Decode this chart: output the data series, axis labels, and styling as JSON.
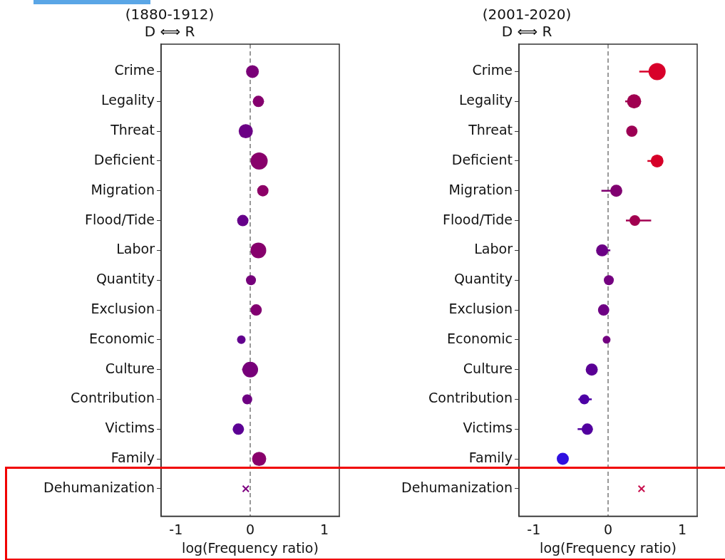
{
  "chart_data": [
    {
      "type": "bubble",
      "title": "(1880-1912)",
      "subtitle": "D ⟺ R",
      "xlabel": "log(Frequency ratio)",
      "orientation": "horizontal",
      "grid": false,
      "legend": false,
      "categories": [
        "Crime",
        "Legality",
        "Threat",
        "Deficient",
        "Migration",
        "Flood/Tide",
        "Labor",
        "Quantity",
        "Exclusion",
        "Economic",
        "Culture",
        "Contribution",
        "Victims",
        "Family",
        "Dehumanization"
      ],
      "xlim": [
        -1.2,
        1.2
      ],
      "xticks": [
        -1,
        0,
        1
      ],
      "ref_lines": [
        {
          "axis": "x",
          "value": 0,
          "color": "#999999",
          "line_style": "dashed"
        }
      ],
      "series": [
        {
          "type": "bubble",
          "marker": "circle",
          "values": [
            0.03,
            0.11,
            -0.06,
            0.12,
            0.17,
            -0.1,
            0.11,
            0.01,
            0.08,
            -0.12,
            0.0,
            -0.04,
            -0.16,
            0.12,
            null
          ],
          "sizes": [
            0.56,
            0.44,
            0.69,
            1,
            0.44,
            0.44,
            0.84,
            0.34,
            0.44,
            0.25,
            0.84,
            0.34,
            0.44,
            0.69,
            null
          ],
          "errors": [
            null,
            null,
            null,
            null,
            null,
            null,
            null,
            null,
            null,
            null,
            [
              -0.11,
              0.0
            ],
            null,
            null,
            null,
            null
          ],
          "colors": [
            "#7a0078",
            "#85006e",
            "#6b0085",
            "#88006b",
            "#8c0067",
            "#66008a",
            "#86006c",
            "#75007b",
            "#820071",
            "#62008e",
            "#770079",
            "#6e0082",
            "#5c0094",
            "#88006b",
            "#7d0080"
          ]
        },
        {
          "type": "scatter",
          "marker": "cross",
          "values": [
            null,
            null,
            null,
            null,
            null,
            null,
            null,
            null,
            null,
            null,
            null,
            null,
            null,
            null,
            -0.06
          ],
          "colors": [
            "#7d0080",
            "#7d0080",
            "#7d0080",
            "#7d0080",
            "#7d0080",
            "#7d0080",
            "#7d0080",
            "#7d0080",
            "#7d0080",
            "#7d0080",
            "#7d0080",
            "#7d0080",
            "#7d0080",
            "#7d0080",
            "#7d0080"
          ]
        }
      ]
    },
    {
      "type": "bubble",
      "title": "(2001-2020)",
      "subtitle": "D ⟺ R",
      "xlabel": "log(Frequency ratio)",
      "orientation": "horizontal",
      "grid": false,
      "legend": false,
      "categories": [
        "Crime",
        "Legality",
        "Threat",
        "Deficient",
        "Migration",
        "Flood/Tide",
        "Labor",
        "Quantity",
        "Exclusion",
        "Economic",
        "Culture",
        "Contribution",
        "Victims",
        "Family",
        "Dehumanization"
      ],
      "xlim": [
        -1.2,
        1.2
      ],
      "xticks": [
        -1,
        0,
        1
      ],
      "ref_lines": [
        {
          "axis": "x",
          "value": 0,
          "color": "#999999",
          "line_style": "dashed"
        }
      ],
      "series": [
        {
          "type": "bubble",
          "marker": "circle",
          "values": [
            0.66,
            0.35,
            0.32,
            0.66,
            0.11,
            0.36,
            -0.08,
            0.01,
            -0.06,
            -0.02,
            -0.22,
            -0.32,
            -0.28,
            -0.61,
            null
          ],
          "sizes": [
            1,
            0.69,
            0.44,
            0.56,
            0.5,
            0.39,
            0.5,
            0.34,
            0.44,
            0.21,
            0.5,
            0.34,
            0.44,
            0.5,
            null
          ],
          "errors": [
            [
              0.42,
              0.66
            ],
            [
              0.23,
              0.35
            ],
            null,
            [
              0.53,
              0.66
            ],
            [
              -0.09,
              0.11
            ],
            [
              0.24,
              0.58
            ],
            [
              -0.08,
              0.03
            ],
            null,
            null,
            null,
            null,
            [
              -0.4,
              -0.22
            ],
            [
              -0.41,
              -0.28
            ],
            null,
            null
          ],
          "colors": [
            "#d8002a",
            "#a00050",
            "#9c0054",
            "#d60028",
            "#800070",
            "#a20050",
            "#6b0085",
            "#740080",
            "#6d0083",
            "#720080",
            "#5a0095",
            "#4d00a5",
            "#52009f",
            "#2f10e0",
            "#c8104e"
          ]
        },
        {
          "type": "scatter",
          "marker": "cross",
          "values": [
            null,
            null,
            null,
            null,
            null,
            null,
            null,
            null,
            null,
            null,
            null,
            null,
            null,
            null,
            0.45
          ],
          "colors": [
            "#c8104e",
            "#c8104e",
            "#c8104e",
            "#c8104e",
            "#c8104e",
            "#c8104e",
            "#c8104e",
            "#c8104e",
            "#c8104e",
            "#c8104e",
            "#c8104e",
            "#c8104e",
            "#c8104e",
            "#c8104e",
            "#c8104e"
          ]
        }
      ]
    }
  ]
}
